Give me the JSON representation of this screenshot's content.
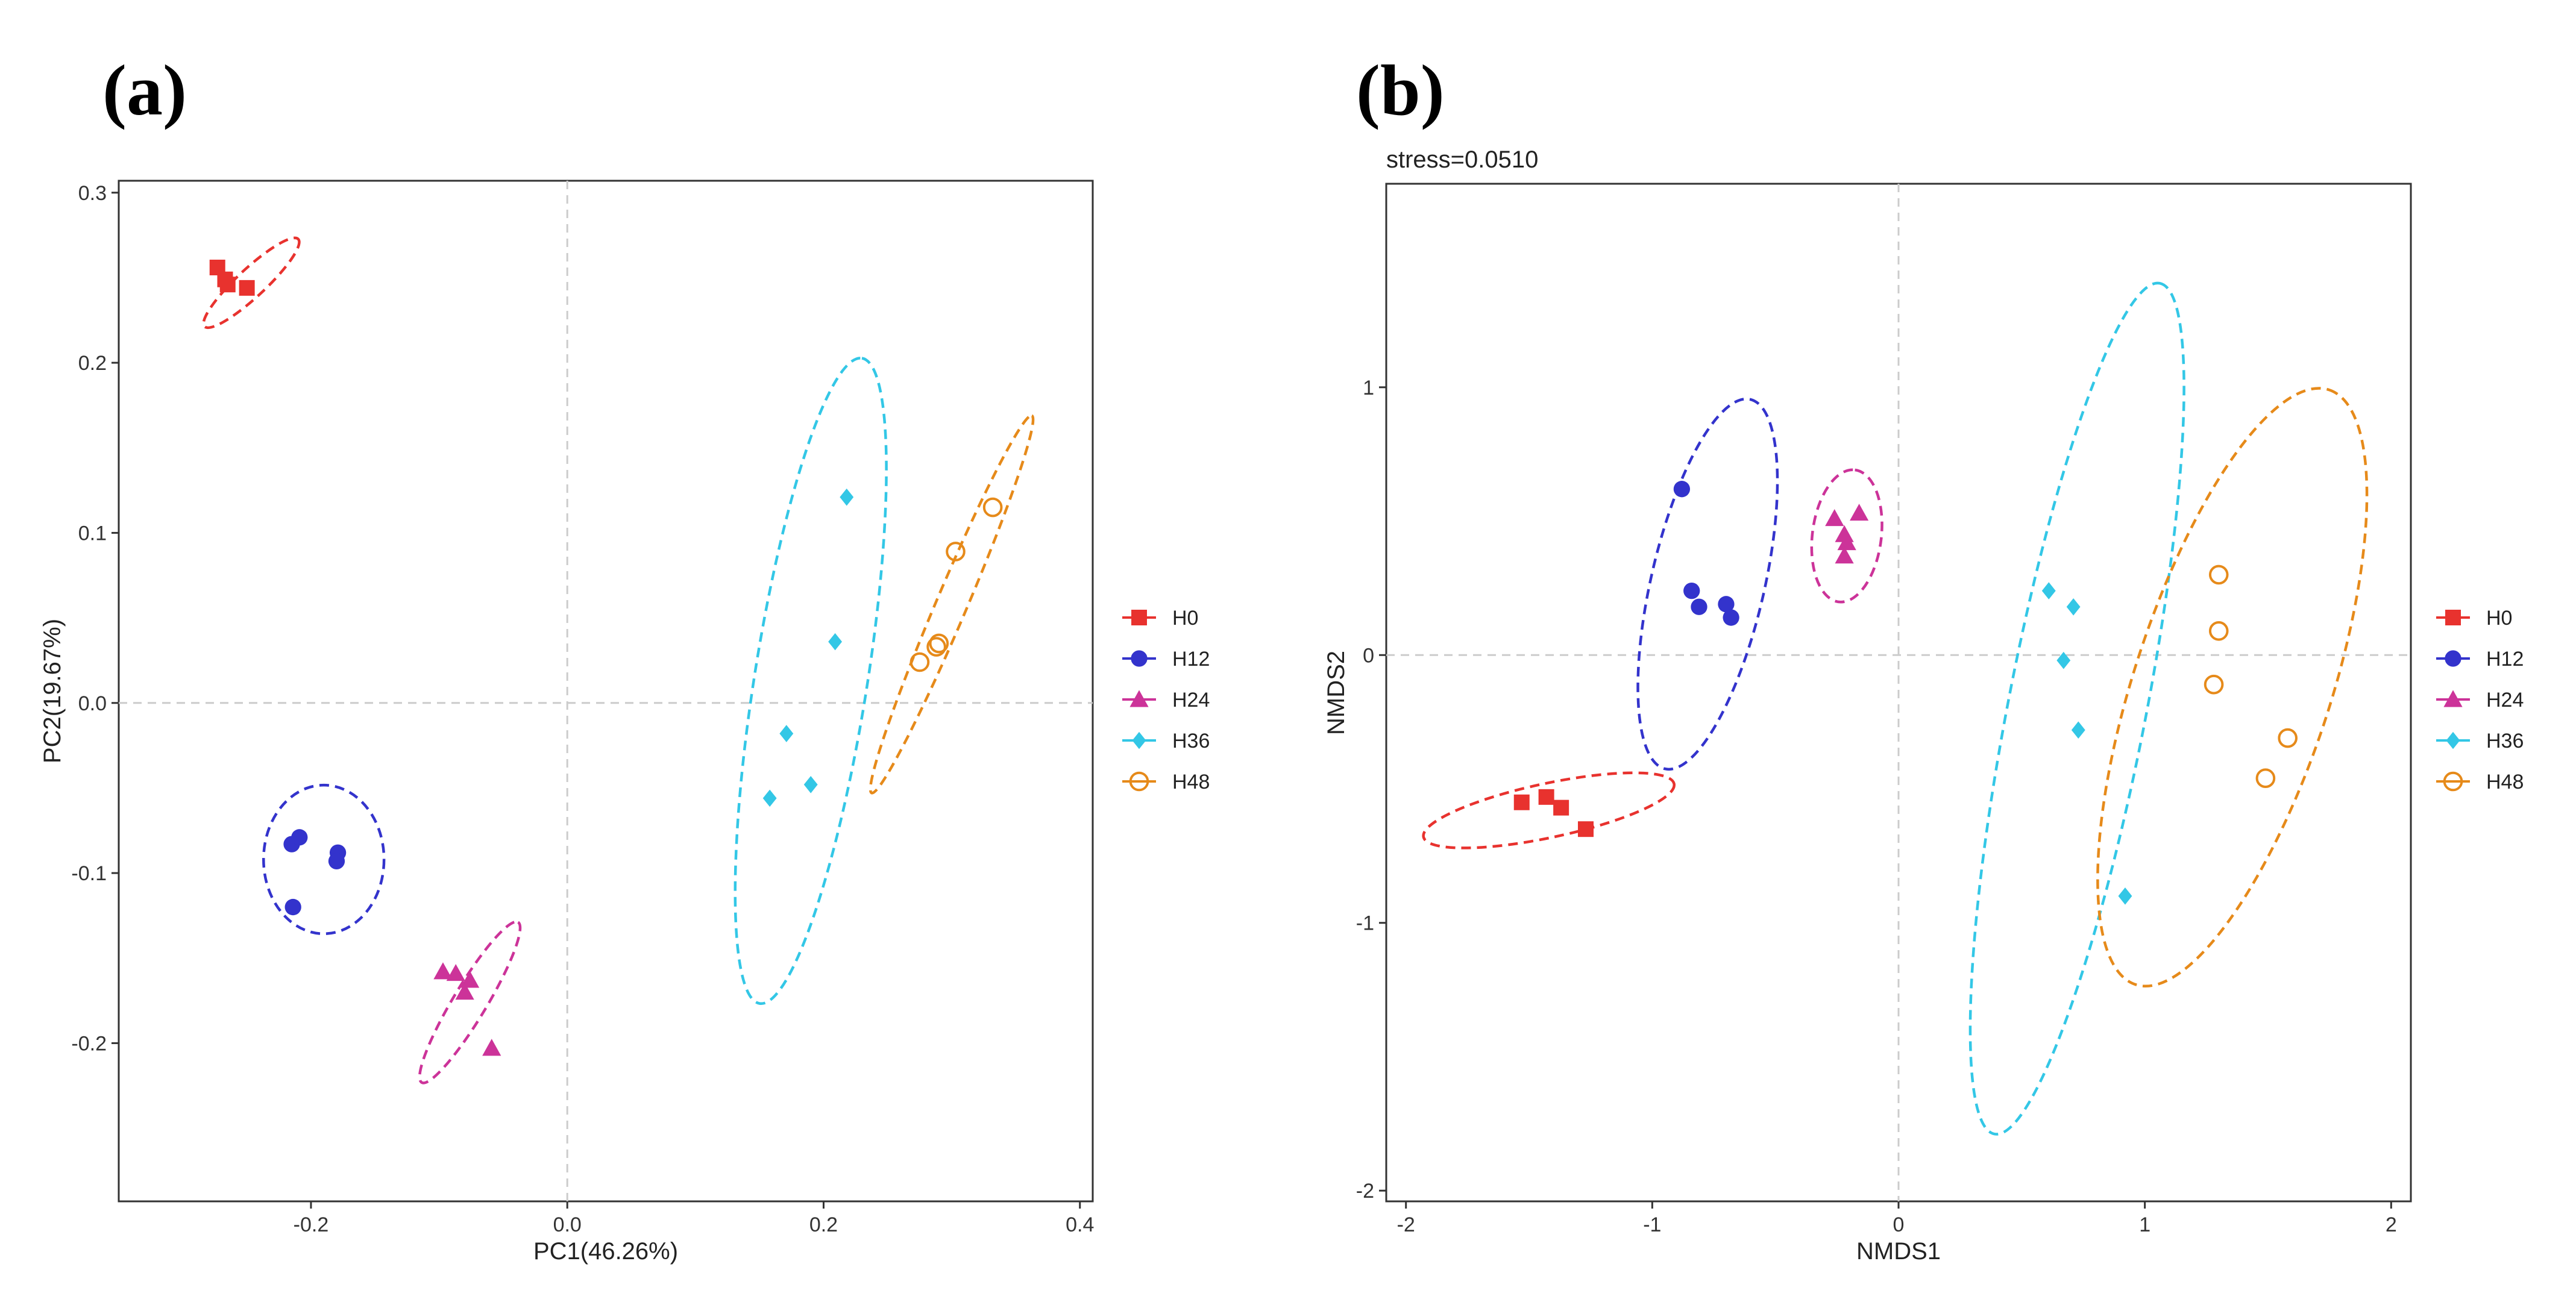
{
  "colors": {
    "H0": "#e8322e",
    "H12": "#3333cc",
    "H24": "#cc3399",
    "H36": "#33c7e6",
    "H48": "#e68a1a",
    "zero_line": "#cccccc",
    "frame": "#333333"
  },
  "chart_data": [
    {
      "id": "a",
      "type": "scatter",
      "panel_label": "(a)",
      "subtitle": "",
      "xlabel": "PC1(46.26%)",
      "ylabel": "PC2(19.67%)",
      "xlim": [
        -0.35,
        0.41
      ],
      "ylim": [
        -0.293,
        0.307
      ],
      "xticks": [
        -0.2,
        0.0,
        0.2,
        0.4
      ],
      "xtick_labels": [
        "-0.2",
        "0.0",
        "0.2",
        "0.4"
      ],
      "yticks": [
        -0.2,
        -0.1,
        0.0,
        0.1,
        0.2,
        0.3
      ],
      "ytick_labels": [
        "-0.2",
        "-0.1",
        "0.0",
        "0.1",
        "0.2",
        "0.3"
      ],
      "zero_lines": true,
      "legend_position": "right",
      "series": [
        {
          "name": "H0",
          "shape": "square",
          "points": [
            [
              -0.273,
              0.256
            ],
            [
              -0.265,
              0.246
            ],
            [
              -0.25,
              0.244
            ],
            [
              -0.267,
              0.249
            ]
          ],
          "ellipse": {
            "cx": -0.2465,
            "cy": 0.247,
            "rx": 0.05,
            "ry": 0.011,
            "angle": -43
          }
        },
        {
          "name": "H12",
          "shape": "circle",
          "points": [
            [
              -0.215,
              -0.083
            ],
            [
              -0.209,
              -0.079
            ],
            [
              -0.179,
              -0.088
            ],
            [
              -0.18,
              -0.093
            ],
            [
              -0.214,
              -0.12
            ]
          ],
          "ellipse": {
            "cx": -0.19,
            "cy": -0.092,
            "rx": 0.047,
            "ry": 0.058,
            "angle": 0
          }
        },
        {
          "name": "H24",
          "shape": "triangle",
          "points": [
            [
              -0.097,
              -0.158
            ],
            [
              -0.087,
              -0.159
            ],
            [
              -0.076,
              -0.163
            ],
            [
              -0.08,
              -0.17
            ],
            [
              -0.059,
              -0.203
            ]
          ],
          "ellipse": {
            "cx": -0.076,
            "cy": -0.176,
            "rx": 0.073,
            "ry": 0.013,
            "angle": -59
          }
        },
        {
          "name": "H36",
          "shape": "diamond",
          "points": [
            [
              0.218,
              0.121
            ],
            [
              0.209,
              0.036
            ],
            [
              0.171,
              -0.018
            ],
            [
              0.19,
              -0.048
            ],
            [
              0.158,
              -0.056
            ]
          ],
          "ellipse": {
            "cx": 0.19,
            "cy": 0.013,
            "rx": 0.255,
            "ry": 0.044,
            "angle": -81
          }
        },
        {
          "name": "H48",
          "shape": "open-circle",
          "points": [
            [
              0.332,
              0.115
            ],
            [
              0.303,
              0.089
            ],
            [
              0.29,
              0.035
            ],
            [
              0.288,
              0.033
            ],
            [
              0.275,
              0.024
            ]
          ],
          "ellipse": {
            "cx": 0.3,
            "cy": 0.058,
            "rx": 0.16,
            "ry": 0.012,
            "angle": -67
          }
        }
      ]
    },
    {
      "id": "b",
      "type": "scatter",
      "panel_label": "(b)",
      "subtitle": "stress=0.0510",
      "xlabel": "NMDS1",
      "ylabel": "NMDS2",
      "xlim": [
        -2.08,
        2.08
      ],
      "ylim": [
        -2.04,
        1.76
      ],
      "xticks": [
        -2,
        -1,
        0,
        1,
        2
      ],
      "xtick_labels": [
        "-2",
        "-1",
        "0",
        "1",
        "2"
      ],
      "yticks": [
        -2,
        -1,
        0,
        1
      ],
      "ytick_labels": [
        "-2",
        "-1",
        "0",
        "1"
      ],
      "zero_lines": true,
      "legend_position": "right",
      "series": [
        {
          "name": "H0",
          "shape": "square",
          "points": [
            [
              -1.53,
              -0.55
            ],
            [
              -1.43,
              -0.53
            ],
            [
              -1.37,
              -0.57
            ],
            [
              -1.27,
              -0.65
            ]
          ],
          "ellipse": {
            "cx": -1.42,
            "cy": -0.58,
            "rx": 0.52,
            "ry": 0.11,
            "angle": -12
          }
        },
        {
          "name": "H12",
          "shape": "circle",
          "points": [
            [
              -0.88,
              0.62
            ],
            [
              -0.84,
              0.24
            ],
            [
              -0.81,
              0.18
            ],
            [
              -0.7,
              0.19
            ],
            [
              -0.68,
              0.14
            ]
          ],
          "ellipse": {
            "cx": -0.775,
            "cy": 0.265,
            "rx": 0.77,
            "ry": 0.23,
            "angle": -77
          }
        },
        {
          "name": "H24",
          "shape": "triangle",
          "points": [
            [
              -0.26,
              0.51
            ],
            [
              -0.16,
              0.53
            ],
            [
              -0.22,
              0.45
            ],
            [
              -0.21,
              0.42
            ],
            [
              -0.22,
              0.37
            ]
          ],
          "ellipse": {
            "cx": -0.21,
            "cy": 0.445,
            "rx": 0.27,
            "ry": 0.14,
            "angle": -83
          }
        },
        {
          "name": "H36",
          "shape": "diamond",
          "points": [
            [
              0.61,
              0.24
            ],
            [
              0.71,
              0.18
            ],
            [
              0.67,
              -0.02
            ],
            [
              0.73,
              -0.28
            ],
            [
              0.92,
              -0.9
            ]
          ],
          "ellipse": {
            "cx": 0.725,
            "cy": -0.2,
            "rx": 1.76,
            "ry": 0.28,
            "angle": -79
          }
        },
        {
          "name": "H48",
          "shape": "open-circle",
          "points": [
            [
              1.3,
              0.3
            ],
            [
              1.3,
              0.09
            ],
            [
              1.28,
              -0.11
            ],
            [
              1.58,
              -0.31
            ],
            [
              1.49,
              -0.46
            ]
          ],
          "ellipse": {
            "cx": 1.355,
            "cy": -0.12,
            "rx": 1.27,
            "ry": 0.4,
            "angle": -72
          }
        }
      ]
    }
  ]
}
